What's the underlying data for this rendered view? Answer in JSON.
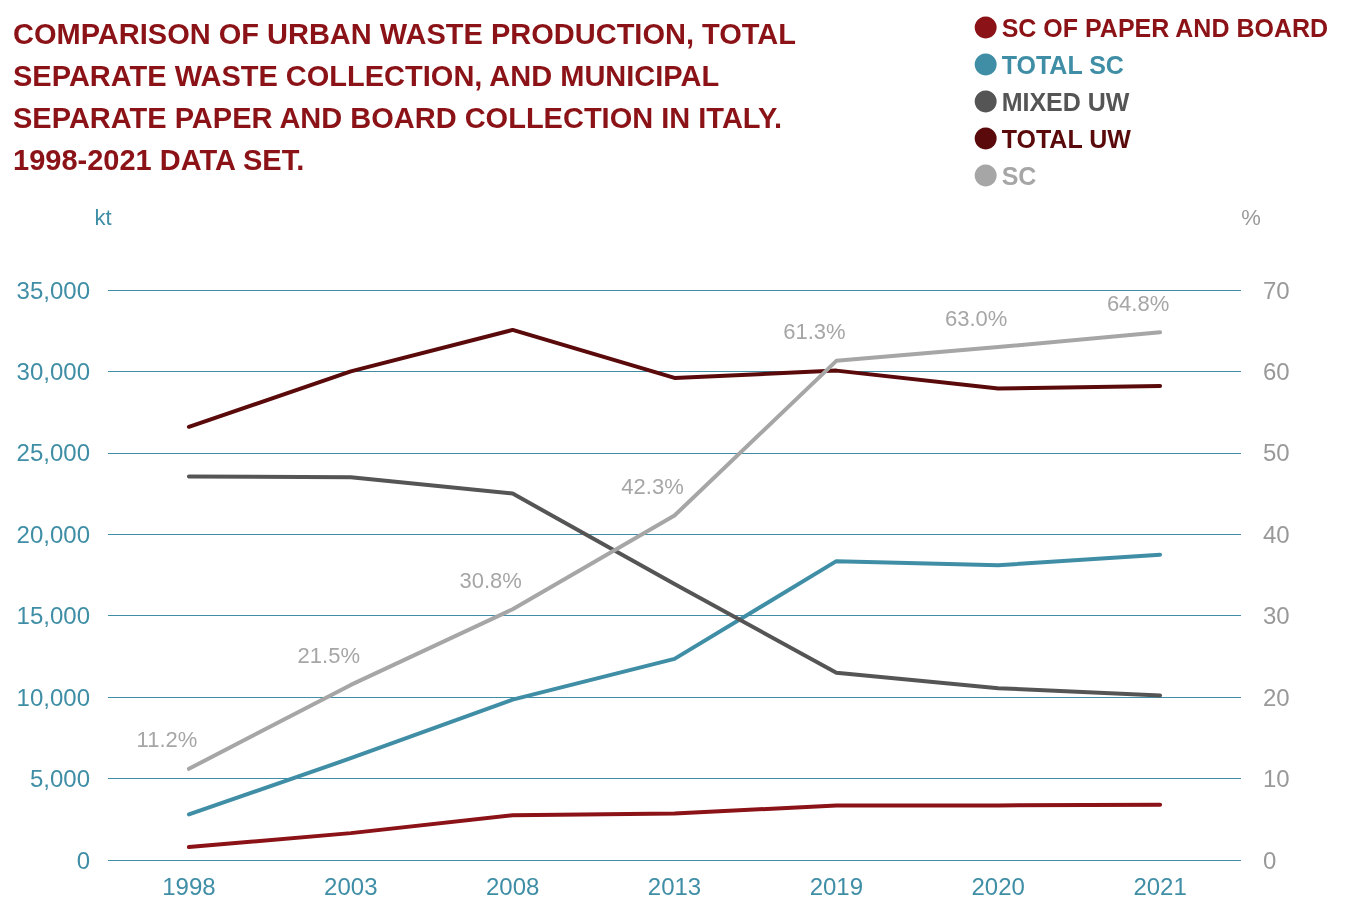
{
  "chart_data": {
    "type": "line",
    "title": "COMPARISON OF URBAN WASTE PRODUCTION, TOTAL SEPARATE WASTE COLLECTION, AND MUNICIPAL SEPARATE PAPER AND BOARD COLLECTION IN ITALY. 1998-2021 DATA SET.",
    "ylabel": "kt",
    "y2label": "%",
    "categories": [
      "1998",
      "2003",
      "2008",
      "2013",
      "2019",
      "2020",
      "2021"
    ],
    "series": [
      {
        "name": "SC OF PAPER AND BOARD",
        "color": "#8b1216",
        "values": [
          800,
          1650,
          2750,
          2850,
          3350,
          3350,
          3400
        ]
      },
      {
        "name": "TOTAL SC",
        "color": "#3f8ea6",
        "values": [
          2800,
          6250,
          9850,
          12350,
          18350,
          18100,
          18750
        ]
      },
      {
        "name": "MIXED UW",
        "color": "#555555",
        "values": [
          23550,
          23500,
          22500,
          16950,
          11500,
          10550,
          10100
        ]
      },
      {
        "name": "TOTAL UW",
        "color": "#5a0a0a",
        "values": [
          26600,
          30000,
          32550,
          29600,
          30050,
          28950,
          29100
        ]
      },
      {
        "name": "SC",
        "color": "#a6a6a6",
        "axis": "y2",
        "values": [
          11.2,
          21.5,
          30.8,
          42.3,
          61.3,
          63.0,
          64.8
        ],
        "value_labels": [
          "11.2%",
          "21.5%",
          "30.8%",
          "42.3%",
          "61.3%",
          "63.0%",
          "64.8%"
        ]
      }
    ],
    "ylim": [
      0,
      35000
    ],
    "yticks": [
      0,
      {
        "value": 5000,
        "label": "5,000"
      },
      {
        "value": 10000,
        "label": "10,000"
      },
      {
        "value": 15000,
        "label": "15,000"
      },
      {
        "value": 20000,
        "label": "20,000"
      },
      {
        "value": 25000,
        "label": "25,000"
      },
      {
        "value": 30000,
        "label": "30,000"
      },
      {
        "value": 35000,
        "label": "35,000"
      }
    ],
    "y2lim": [
      0,
      70
    ],
    "y2ticks": [
      0,
      10,
      20,
      30,
      40,
      50,
      60,
      70
    ],
    "grid": "y",
    "legend": "top right",
    "line_style": "solid"
  }
}
